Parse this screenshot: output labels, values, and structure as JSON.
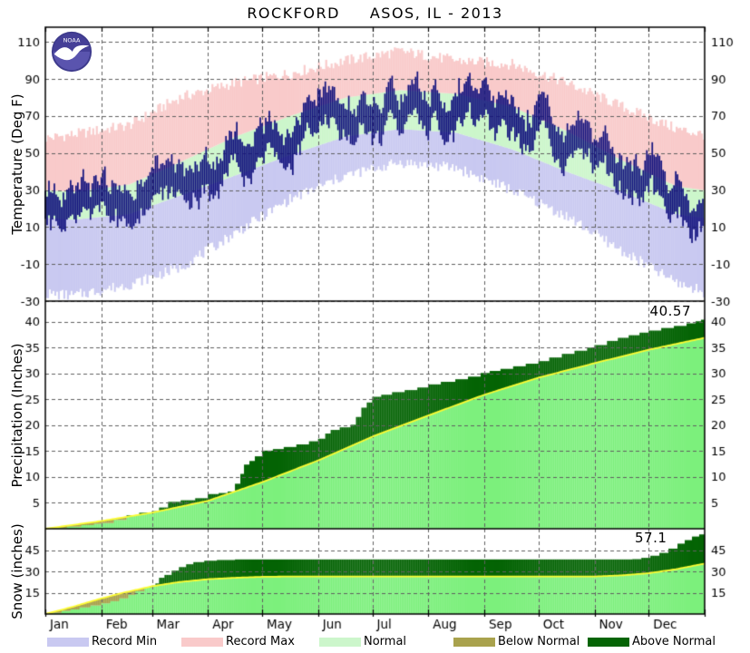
{
  "title": "ROCKFORD     ASOS, IL - 2013",
  "months": [
    "Jan",
    "Feb",
    "Mar",
    "Apr",
    "May",
    "Jun",
    "Jul",
    "Aug",
    "Sep",
    "Oct",
    "Nov",
    "Dec"
  ],
  "month_start_days": [
    0,
    31,
    59,
    90,
    120,
    151,
    181,
    212,
    243,
    273,
    304,
    334,
    365
  ],
  "days_in_year": 365,
  "colors": {
    "record_min": "#c9c9f1",
    "record_max": "#f9caca",
    "normal_band": "#ccf6cb",
    "normal_fill": "#7df07d",
    "above_normal": "#056405",
    "below_normal": "#a9a24d",
    "normal_line": "#fdfd32",
    "daily_bar": "#12127e",
    "grid": "#606060",
    "border": "#000000"
  },
  "legend": {
    "items": [
      {
        "label": "Record Min",
        "color": "#c9c9f1"
      },
      {
        "label": "Record Max",
        "color": "#f9caca"
      },
      {
        "label": "Normal",
        "color": "#ccf6cb"
      },
      {
        "label": "Below Normal",
        "color": "#a9a24d"
      },
      {
        "label": "Above Normal",
        "color": "#056405"
      }
    ]
  },
  "chart_data": [
    {
      "type": "bar",
      "name": "temperature",
      "title": "Daily temperature range vs record and normal bands",
      "ylabel": "Temperature (Deg F)",
      "ylim": [
        -30,
        118
      ],
      "yticks": [
        110,
        90,
        70,
        50,
        30,
        10,
        -10,
        -30
      ],
      "grid": true,
      "control_days": [
        0,
        15,
        46,
        74,
        105,
        135,
        166,
        196,
        227,
        258,
        288,
        319,
        349,
        364
      ],
      "record_low": [
        -26,
        -27,
        -21,
        -12,
        7,
        25,
        38,
        45,
        42,
        30,
        16,
        -3,
        -20,
        -25
      ],
      "normal_min": [
        15,
        14,
        17,
        27,
        38,
        49,
        59,
        63,
        61,
        52,
        40,
        29,
        17,
        15
      ],
      "normal_max": [
        30,
        29,
        33,
        45,
        59,
        70,
        80,
        84,
        82,
        75,
        62,
        46,
        32,
        30
      ],
      "record_high": [
        58,
        60,
        65,
        80,
        88,
        93,
        100,
        105,
        100,
        98,
        88,
        75,
        63,
        60
      ],
      "actual_mean": [
        18,
        22,
        25,
        33,
        48,
        62,
        70,
        76,
        73,
        66,
        52,
        38,
        22,
        16
      ],
      "daily_spread_f": 17,
      "seed": 20133
    },
    {
      "type": "area",
      "name": "precipitation",
      "title": "Cumulative precipitation vs normal",
      "ylabel": "Precipitation (Inches)",
      "ylim": [
        0,
        44
      ],
      "yticks": [
        40,
        35,
        30,
        25,
        20,
        15,
        10,
        5
      ],
      "grid": true,
      "annotation": "40.57",
      "annotation_value": 40.57,
      "normal": [
        [
          0,
          0
        ],
        [
          31,
          1.5
        ],
        [
          59,
          3.1
        ],
        [
          90,
          5.4
        ],
        [
          120,
          9.0
        ],
        [
          151,
          13.2
        ],
        [
          181,
          17.8
        ],
        [
          212,
          21.9
        ],
        [
          243,
          25.9
        ],
        [
          273,
          29.2
        ],
        [
          304,
          32.0
        ],
        [
          334,
          34.6
        ],
        [
          365,
          36.9
        ]
      ],
      "actual": [
        [
          0,
          0
        ],
        [
          6,
          0.15
        ],
        [
          12,
          0.4
        ],
        [
          20,
          0.7
        ],
        [
          27,
          0.95
        ],
        [
          31,
          1.1
        ],
        [
          38,
          1.7
        ],
        [
          45,
          2.6
        ],
        [
          52,
          3.1
        ],
        [
          59,
          3.4
        ],
        [
          63,
          4.1
        ],
        [
          68,
          5.2
        ],
        [
          75,
          5.5
        ],
        [
          83,
          5.9
        ],
        [
          90,
          6.7
        ],
        [
          96,
          6.9
        ],
        [
          101,
          7.2
        ],
        [
          105,
          8.7
        ],
        [
          108,
          10.6
        ],
        [
          110,
          12.4
        ],
        [
          113,
          13.1
        ],
        [
          116,
          14.0
        ],
        [
          120,
          15.1
        ],
        [
          126,
          15.4
        ],
        [
          132,
          15.8
        ],
        [
          139,
          16.3
        ],
        [
          146,
          16.9
        ],
        [
          151,
          17.4
        ],
        [
          155,
          18.4
        ],
        [
          158,
          19.1
        ],
        [
          163,
          19.6
        ],
        [
          169,
          20.1
        ],
        [
          172,
          21.6
        ],
        [
          175,
          23.4
        ],
        [
          178,
          24.4
        ],
        [
          181,
          25.5
        ],
        [
          186,
          25.9
        ],
        [
          192,
          26.4
        ],
        [
          199,
          26.8
        ],
        [
          206,
          27.3
        ],
        [
          212,
          27.9
        ],
        [
          219,
          28.4
        ],
        [
          227,
          28.9
        ],
        [
          234,
          29.4
        ],
        [
          241,
          30.1
        ],
        [
          246,
          30.5
        ],
        [
          252,
          30.9
        ],
        [
          259,
          31.4
        ],
        [
          266,
          31.9
        ],
        [
          273,
          32.4
        ],
        [
          279,
          33.1
        ],
        [
          286,
          33.8
        ],
        [
          293,
          34.4
        ],
        [
          300,
          35.0
        ],
        [
          304,
          35.5
        ],
        [
          311,
          36.3
        ],
        [
          317,
          36.9
        ],
        [
          323,
          37.4
        ],
        [
          329,
          37.9
        ],
        [
          334,
          38.3
        ],
        [
          341,
          38.8
        ],
        [
          348,
          39.2
        ],
        [
          355,
          39.7
        ],
        [
          360,
          40.1
        ],
        [
          363,
          40.4
        ],
        [
          365,
          40.57
        ]
      ]
    },
    {
      "type": "area",
      "name": "snow",
      "title": "Cumulative snowfall vs normal",
      "ylabel": "Snow (inches)",
      "ylim": [
        0,
        60
      ],
      "yticks": [
        45,
        30,
        15
      ],
      "grid": true,
      "annotation": "57.1",
      "annotation_value": 57.1,
      "normal": [
        [
          0,
          0
        ],
        [
          15,
          5
        ],
        [
          31,
          11
        ],
        [
          45,
          15.5
        ],
        [
          59,
          19.5
        ],
        [
          74,
          22.5
        ],
        [
          90,
          24.5
        ],
        [
          105,
          25.5
        ],
        [
          120,
          26.2
        ],
        [
          135,
          26.4
        ],
        [
          304,
          26.4
        ],
        [
          319,
          27.2
        ],
        [
          334,
          28.7
        ],
        [
          349,
          31.5
        ],
        [
          365,
          35.5
        ]
      ],
      "actual": [
        [
          0,
          0
        ],
        [
          4,
          0.8
        ],
        [
          9,
          2.2
        ],
        [
          14,
          3.2
        ],
        [
          19,
          4.6
        ],
        [
          25,
          6.0
        ],
        [
          31,
          7.5
        ],
        [
          36,
          9.0
        ],
        [
          41,
          11.0
        ],
        [
          46,
          13.5
        ],
        [
          50,
          16.0
        ],
        [
          55,
          18.5
        ],
        [
          59,
          20.0
        ],
        [
          61,
          21.5
        ],
        [
          63,
          25.5
        ],
        [
          66,
          27.5
        ],
        [
          70,
          30.5
        ],
        [
          74,
          33.0
        ],
        [
          78,
          35.0
        ],
        [
          82,
          36.5
        ],
        [
          88,
          37.5
        ],
        [
          95,
          38.0
        ],
        [
          105,
          38.4
        ],
        [
          300,
          38.4
        ],
        [
          325,
          38.6
        ],
        [
          330,
          39.5
        ],
        [
          335,
          41.0
        ],
        [
          340,
          43.0
        ],
        [
          345,
          46.0
        ],
        [
          350,
          49.5
        ],
        [
          354,
          52.0
        ],
        [
          358,
          54.5
        ],
        [
          362,
          56.0
        ],
        [
          365,
          57.1
        ]
      ]
    }
  ]
}
